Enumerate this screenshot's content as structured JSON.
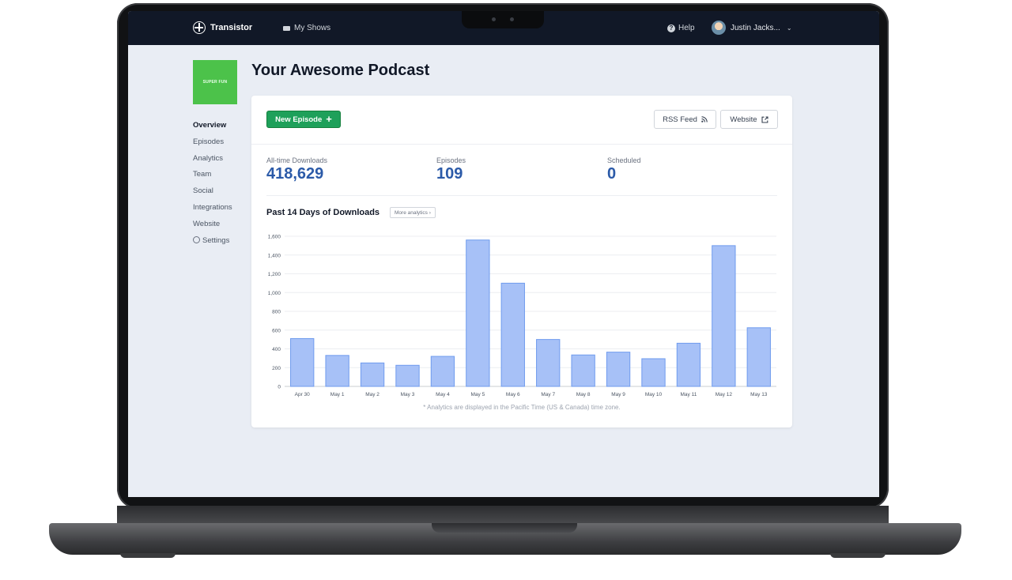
{
  "nav": {
    "brand": "Transistor",
    "my_shows": "My Shows",
    "help": "Help",
    "user_name": "Justin Jacks..."
  },
  "sidebar": {
    "cover_text": "SUPER FUN",
    "cover_color": "#4cc24a",
    "items": [
      {
        "label": "Overview",
        "active": true
      },
      {
        "label": "Episodes"
      },
      {
        "label": "Analytics"
      },
      {
        "label": "Team"
      },
      {
        "label": "Social"
      },
      {
        "label": "Integrations"
      },
      {
        "label": "Website"
      },
      {
        "label": "Settings",
        "icon": "gear-icon"
      }
    ]
  },
  "page": {
    "title": "Your Awesome Podcast"
  },
  "toolbar": {
    "new_episode": "New Episode",
    "rss_feed": "RSS Feed",
    "website": "Website"
  },
  "stats": [
    {
      "label": "All-time Downloads",
      "value": "418,629"
    },
    {
      "label": "Episodes",
      "value": "109"
    },
    {
      "label": "Scheduled",
      "value": "0"
    }
  ],
  "chart_section": {
    "title": "Past 14 Days of Downloads",
    "more_button": "More analytics ›",
    "footnote": "* Analytics are displayed in the Pacific Time (US & Canada) time zone."
  },
  "chart_data": {
    "type": "bar",
    "categories": [
      "Apr 30",
      "May 1",
      "May 2",
      "May 3",
      "May 4",
      "May 5",
      "May 6",
      "May 7",
      "May 8",
      "May 9",
      "May 10",
      "May 11",
      "May 12",
      "May 13"
    ],
    "values": [
      510,
      330,
      250,
      225,
      320,
      1560,
      1100,
      500,
      335,
      365,
      295,
      460,
      1500,
      625
    ],
    "ylim": [
      0,
      1600
    ],
    "yticks": [
      "0",
      "200",
      "400",
      "600",
      "800",
      "1,000",
      "1,200",
      "1,400",
      "1,600"
    ],
    "grid": true,
    "bar_color": "#a7c1f7",
    "bar_border": "#6f9bee"
  }
}
